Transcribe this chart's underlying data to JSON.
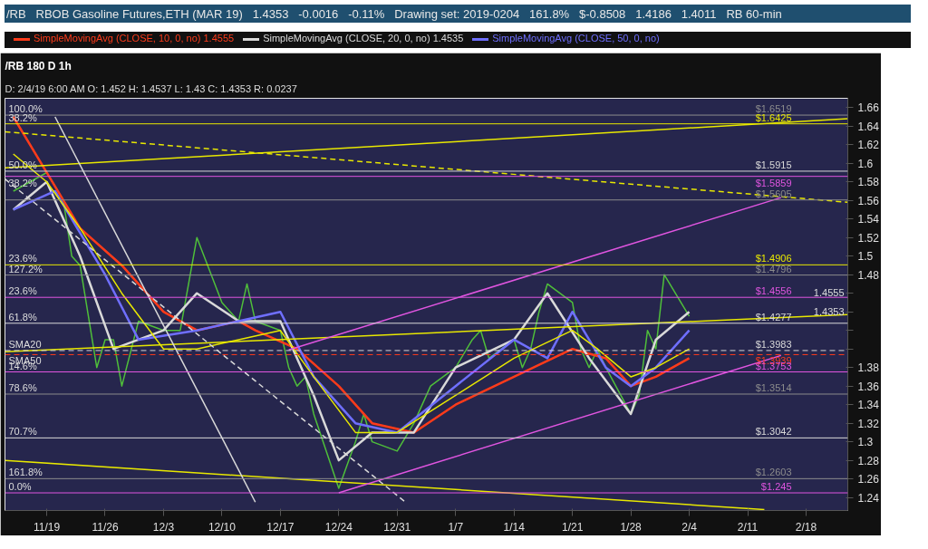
{
  "chart_data": {
    "type": "line",
    "title": "/RB 180 D 1h",
    "subtitle": "D: 2/4/19 6:00 AM  O: 1.452  H: 1.4537  L: 1.43  C: 1.4353  R: 0.0237",
    "xlim": [
      "2018-11-14",
      "2019-02-23"
    ],
    "ylim": [
      1.226,
      1.67
    ],
    "xticks": [
      {
        "value": "2018-11-19",
        "label": "11/19"
      },
      {
        "value": "2018-11-26",
        "label": "11/26"
      },
      {
        "value": "2018-12-03",
        "label": "12/3"
      },
      {
        "value": "2018-12-10",
        "label": "12/10"
      },
      {
        "value": "2018-12-17",
        "label": "12/17"
      },
      {
        "value": "2018-12-24",
        "label": "12/24"
      },
      {
        "value": "2018-12-31",
        "label": "12/31"
      },
      {
        "value": "2019-01-07",
        "label": "1/7"
      },
      {
        "value": "2019-01-14",
        "label": "1/14"
      },
      {
        "value": "2019-01-21",
        "label": "1/21"
      },
      {
        "value": "2019-01-28",
        "label": "1/28"
      },
      {
        "value": "2019-02-04",
        "label": "2/4"
      },
      {
        "value": "2019-02-11",
        "label": "2/11"
      },
      {
        "value": "2019-02-18",
        "label": "2/18"
      }
    ],
    "yticks": [
      1.24,
      1.26,
      1.28,
      1.3,
      1.32,
      1.34,
      1.36,
      1.38,
      {
        "value": 1.4,
        "label": null
      },
      {
        "value": 1.42,
        "label": null
      },
      {
        "value": 1.44,
        "label": null
      },
      {
        "value": 1.46,
        "label": null
      },
      1.48,
      1.5,
      1.52,
      1.54,
      1.56,
      1.58,
      1.6,
      1.62,
      1.64,
      1.66
    ],
    "grid": false,
    "legend": "top",
    "series": [
      {
        "color": "#4fbf3a",
        "x": [
          "2018-11-15",
          "2018-11-19",
          "2018-11-21",
          "2018-11-22",
          "2018-11-23",
          "2018-11-25",
          "2018-11-26",
          "2018-11-27",
          "2018-11-28",
          "2018-11-30",
          "2018-12-03",
          "2018-12-05",
          "2018-12-07",
          "2018-12-10",
          "2018-12-12",
          "2018-12-13",
          "2018-12-14",
          "2018-12-17",
          "2018-12-18",
          "2018-12-19",
          "2018-12-20",
          "2018-12-21",
          "2018-12-24",
          "2018-12-26",
          "2018-12-27",
          "2018-12-28",
          "2018-12-31",
          "2019-01-02",
          "2019-01-04",
          "2019-01-07",
          "2019-01-09",
          "2019-01-10",
          "2019-01-11",
          "2019-01-14",
          "2019-01-15",
          "2019-01-16",
          "2019-01-17",
          "2019-01-18",
          "2019-01-21",
          "2019-01-22",
          "2019-01-23",
          "2019-01-24",
          "2019-01-25",
          "2019-01-28",
          "2019-01-29",
          "2019-01-30",
          "2019-01-31",
          "2019-02-01",
          "2019-02-04"
        ],
        "values": [
          1.57,
          1.59,
          1.56,
          1.5,
          1.49,
          1.38,
          1.41,
          1.41,
          1.36,
          1.43,
          1.42,
          1.42,
          1.52,
          1.45,
          1.43,
          1.47,
          1.43,
          1.42,
          1.38,
          1.36,
          1.37,
          1.33,
          1.25,
          1.3,
          1.33,
          1.3,
          1.29,
          1.32,
          1.36,
          1.38,
          1.41,
          1.42,
          1.39,
          1.41,
          1.38,
          1.4,
          1.44,
          1.47,
          1.45,
          1.4,
          1.38,
          1.4,
          1.38,
          1.33,
          1.35,
          1.42,
          1.4,
          1.48,
          1.4353
        ]
      },
      {
        "name": "SimpleMovingAvg (CLOSE, 10, 0, no)  1.4555",
        "color": "#ff3b1a",
        "x": [
          "2018-11-15",
          "2018-11-19",
          "2018-11-23",
          "2018-11-28",
          "2018-12-03",
          "2018-12-07",
          "2018-12-12",
          "2018-12-14",
          "2018-12-19",
          "2018-12-24",
          "2018-12-28",
          "2019-01-02",
          "2019-01-07",
          "2019-01-14",
          "2019-01-21",
          "2019-01-25",
          "2019-01-28",
          "2019-01-31",
          "2019-02-04"
        ],
        "values": [
          1.65,
          1.59,
          1.53,
          1.49,
          1.44,
          1.42,
          1.43,
          1.42,
          1.4,
          1.36,
          1.32,
          1.31,
          1.34,
          1.37,
          1.4,
          1.39,
          1.36,
          1.37,
          1.39
        ]
      },
      {
        "name": "SimpleMovingAvg (CLOSE, 20, 0, no)  1.4535",
        "color": "#d9d9d9",
        "x": [
          "2018-11-15",
          "2018-11-19",
          "2018-11-23",
          "2018-11-27",
          "2018-12-03",
          "2018-12-07",
          "2018-12-12",
          "2018-12-17",
          "2018-12-21",
          "2018-12-24",
          "2018-12-28",
          "2019-01-02",
          "2019-01-07",
          "2019-01-14",
          "2019-01-18",
          "2019-01-23",
          "2019-01-28",
          "2019-01-31",
          "2019-02-04"
        ],
        "values": [
          1.55,
          1.58,
          1.5,
          1.4,
          1.42,
          1.46,
          1.43,
          1.43,
          1.35,
          1.28,
          1.31,
          1.31,
          1.38,
          1.41,
          1.46,
          1.39,
          1.33,
          1.41,
          1.44
        ]
      },
      {
        "name": "SimpleMovingAvg (CLOSE, 50, 0, no)",
        "color": "#6f6fff",
        "x": [
          "2018-11-15",
          "2018-11-20",
          "2018-11-26",
          "2018-11-30",
          "2018-12-07",
          "2018-12-12",
          "2018-12-17",
          "2018-12-21",
          "2018-12-26",
          "2018-12-31",
          "2019-01-07",
          "2019-01-14",
          "2019-01-18",
          "2019-01-21",
          "2019-01-25",
          "2019-01-28",
          "2019-01-31",
          "2019-02-04"
        ],
        "values": [
          1.55,
          1.57,
          1.48,
          1.41,
          1.42,
          1.43,
          1.44,
          1.37,
          1.32,
          1.31,
          1.36,
          1.41,
          1.39,
          1.44,
          1.38,
          1.36,
          1.38,
          1.42
        ]
      },
      {
        "color": "#e8e800",
        "x": [
          "2018-11-15",
          "2018-11-19",
          "2018-11-23",
          "2018-11-28",
          "2018-12-03",
          "2018-12-07",
          "2018-12-12",
          "2018-12-17",
          "2018-12-21",
          "2018-12-26",
          "2018-12-31",
          "2019-01-07",
          "2019-01-14",
          "2019-01-21",
          "2019-01-24",
          "2019-01-28",
          "2019-01-31",
          "2019-02-04"
        ],
        "values": [
          1.61,
          1.58,
          1.53,
          1.46,
          1.4,
          1.4,
          1.41,
          1.42,
          1.37,
          1.31,
          1.31,
          1.35,
          1.39,
          1.42,
          1.4,
          1.37,
          1.38,
          1.4
        ]
      },
      {
        "color": "#e8e800",
        "line_style": "dashed",
        "x": [
          "2018-11-14",
          "2019-02-23"
        ],
        "values": [
          1.634,
          1.558
        ]
      },
      {
        "color": "#e8e800",
        "x": [
          "2018-11-14",
          "2019-02-23"
        ],
        "values": [
          1.595,
          1.648
        ]
      },
      {
        "color": "#e8e800",
        "x": [
          "2018-11-14",
          "2019-02-23"
        ],
        "values": [
          1.397,
          1.437
        ]
      },
      {
        "color": "#e8e800",
        "x": [
          "2018-11-14",
          "2019-02-13"
        ],
        "values": [
          1.28,
          1.227
        ]
      },
      {
        "color": "#e055e0",
        "x": [
          "2018-12-24",
          "2019-02-15"
        ],
        "values": [
          1.245,
          1.393
        ]
      },
      {
        "color": "#e055e0",
        "x": [
          "2018-12-18",
          "2019-02-15"
        ],
        "values": [
          1.399,
          1.563
        ]
      },
      {
        "color": "#d9d9d9",
        "x": [
          "2018-11-20",
          "2018-12-14"
        ],
        "values": [
          1.65,
          1.235
        ]
      },
      {
        "color": "#d9d9d9",
        "line_style": "dashed",
        "x": [
          "2018-11-14",
          "2019-01-01"
        ],
        "values": [
          1.583,
          1.235
        ]
      }
    ],
    "ref_lines": [
      {
        "axis": "y",
        "value": 1.6519,
        "label": "$1.6519",
        "color": "#8c8c8c"
      },
      {
        "axis": "y",
        "value": 1.6425,
        "label": "$1.6425",
        "color": "#e8e800"
      },
      {
        "axis": "y",
        "value": 1.5915,
        "label": "$1.5915",
        "color": "#d9d9d9"
      },
      {
        "axis": "y",
        "value": 1.5859,
        "label": "$1.5859",
        "color": "#e055e0"
      },
      {
        "axis": "y",
        "value": 1.5605,
        "label": "$1.5605",
        "color": "#8c8c8c"
      },
      {
        "axis": "y",
        "value": 1.4906,
        "label": "$1.4906",
        "color": "#e8e800"
      },
      {
        "axis": "y",
        "value": 1.4796,
        "label": "$1.4796",
        "color": "#8c8c8c"
      },
      {
        "axis": "y",
        "value": 1.4556,
        "label": "$1.4556",
        "color": "#e055e0"
      },
      {
        "axis": "y",
        "value": 1.4277,
        "label": "$1.4277",
        "color": "#d9d9d9"
      },
      {
        "axis": "y",
        "value": 1.3983,
        "label": "$1.3983",
        "color": "#d9d9d9",
        "line_style": "dashed"
      },
      {
        "axis": "y",
        "value": 1.3939,
        "label": "$1.3939",
        "color": "#ff3b1a",
        "line_style": "dashed"
      },
      {
        "axis": "y",
        "value": 1.3753,
        "label": "$1.3753",
        "color": "#e055e0"
      },
      {
        "axis": "y",
        "value": 1.3514,
        "label": "$1.3514",
        "color": "#8c8c8c"
      },
      {
        "axis": "y",
        "value": 1.3042,
        "label": "$1.3042",
        "color": "#d9d9d9"
      },
      {
        "axis": "y",
        "value": 1.2603,
        "label": "$1.2603",
        "color": "#8c8c8c"
      },
      {
        "axis": "y",
        "value": 1.245,
        "label": "$1.245",
        "color": "#e055e0"
      }
    ],
    "annotations": [
      {
        "text": "100.0%",
        "x": "2018-11-14",
        "y": 1.6519
      },
      {
        "text": "38.2%",
        "x": "2018-11-14",
        "y": 1.6425
      },
      {
        "text": "50.0%",
        "x": "2018-11-14",
        "y": 1.5915
      },
      {
        "text": "38.2%",
        "x": "2018-11-14",
        "y": 1.5859
      },
      {
        "text": "23.6%",
        "x": "2018-11-14",
        "y": 1.4906
      },
      {
        "text": "127.2%",
        "x": "2018-11-14",
        "y": 1.4796
      },
      {
        "text": "23.6%",
        "x": "2018-11-14",
        "y": 1.4556
      },
      {
        "text": "61.8%",
        "x": "2018-11-14",
        "y": 1.4277
      },
      {
        "text": "SMA20",
        "x": "2018-11-14",
        "y": 1.3983
      },
      {
        "text": "SMA50",
        "x": "2018-11-14",
        "y": 1.3939
      },
      {
        "text": "14.6%",
        "x": "2018-11-14",
        "y": 1.3753
      },
      {
        "text": "78.6%",
        "x": "2018-11-14",
        "y": 1.3514
      },
      {
        "text": "70.7%",
        "x": "2018-11-14",
        "y": 1.3042
      },
      {
        "text": "161.8%",
        "x": "2018-11-14",
        "y": 1.2603
      },
      {
        "text": "0.0%",
        "x": "2018-11-14",
        "y": 1.245
      },
      {
        "text": "1.4555",
        "x": "2019-02-23",
        "y": 1.4555
      },
      {
        "text": "1.4353",
        "x": "2019-02-23",
        "y": 1.4353
      },
      "/RB",
      "RBOB Gasoline Futures,ETH (MAR 19)",
      "1.4353",
      "-0.0016",
      "-0.11%",
      "Drawing set: 2019-0204",
      "161.8%",
      "$-0.8508",
      "1.4186",
      "1.4011",
      "RB  60-min"
    ]
  }
}
